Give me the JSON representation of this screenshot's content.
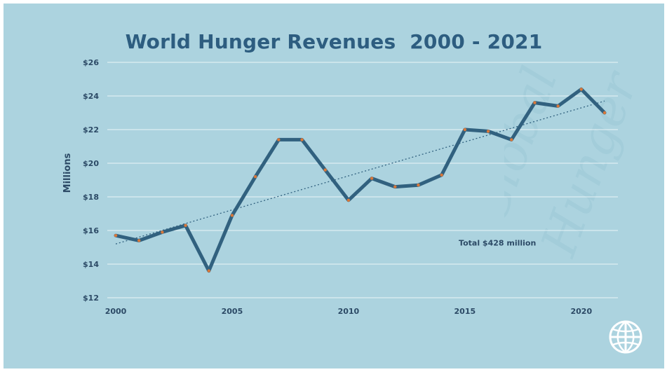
{
  "chart_data": {
    "type": "line",
    "title": "World Hunger Revenues  2000 - 2021",
    "ylabel": "Millions",
    "xlabel": "",
    "x": [
      2000,
      2001,
      2002,
      2003,
      2004,
      2005,
      2006,
      2007,
      2008,
      2009,
      2010,
      2011,
      2012,
      2013,
      2014,
      2015,
      2016,
      2017,
      2018,
      2019,
      2020,
      2021
    ],
    "series": [
      {
        "values": [
          15.7,
          15.4,
          15.9,
          16.3,
          13.6,
          16.9,
          19.2,
          21.4,
          21.4,
          19.6,
          17.8,
          19.1,
          18.6,
          18.7,
          19.3,
          22.0,
          21.9,
          21.4,
          23.6,
          23.4,
          24.4,
          23.0
        ],
        "color": "#31617f",
        "marker_color": "#d9783a"
      }
    ],
    "trendline": {
      "style": "dotted",
      "start": 15.2,
      "end": 23.7
    },
    "xticks": [
      2000,
      2005,
      2010,
      2015,
      2020
    ],
    "yticks": [
      12,
      14,
      16,
      18,
      20,
      22,
      24,
      26
    ],
    "ytick_labels": [
      "$12",
      "$14",
      "$16",
      "$18",
      "$20",
      "$22",
      "$24",
      "$26"
    ],
    "ylim": [
      12,
      26
    ],
    "xlim": [
      2000,
      2021
    ],
    "grid": true,
    "annotation": {
      "text": "Total $428 million",
      "x": 2016,
      "y": 15.1
    },
    "colors": {
      "background": "#acd3df",
      "title": "#2d5d80",
      "axis_text": "#2c4a66",
      "gridline": "#ffffff"
    }
  },
  "logo": {
    "icon": "globe-icon"
  }
}
